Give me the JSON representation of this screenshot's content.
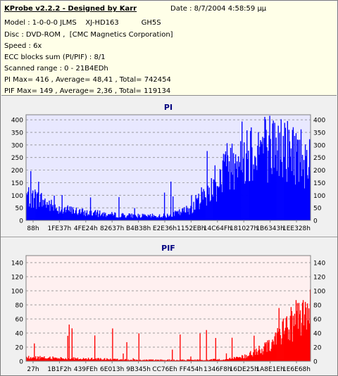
{
  "info": {
    "title": "KProbe v2.2.2 - Designed by Karr",
    "date": "Date : 8/7/2004 4:58:59 μμ",
    "model_label": "Model : 1-0-0-0 JLMS",
    "model_drive": "XJ-HD163",
    "model_fw": "GH5S",
    "disc": "Disc : DVD-ROM ,  [CMC Magnetics Corporation]",
    "speed": "Speed : 6x",
    "ecc": "ECC blocks sum (PI/PIF) : 8/1",
    "range": "Scanned range : 0 - 21B4EDh",
    "pi_stats": "PI Max= 416 , Average= 48,41 , Total= 742454",
    "pif_stats": "PIF Max= 149 , Average= 2,36 , Total= 119134"
  },
  "colors": {
    "pi": "#0000ff",
    "pif": "#ff0000",
    "plot_bg": "#e8e8ff",
    "pif_bg": "#fff0f0",
    "title": "#000080"
  },
  "chart_data": [
    {
      "type": "bar",
      "title": "PI",
      "ylim": [
        0,
        420
      ],
      "yticks": [
        0,
        50,
        100,
        150,
        200,
        250,
        300,
        350,
        400
      ],
      "xtick_labels": [
        "88h",
        "1FE37h",
        "4FE24h",
        "82637h",
        "B4B38h",
        "E2E36h",
        "1152EBh",
        "14C64Fh",
        "181027h",
        "1B6343h",
        "1EE328h"
      ],
      "grid": true,
      "max": 416,
      "average": 48.41,
      "profile": [
        [
          0,
          110
        ],
        [
          0.05,
          90
        ],
        [
          0.1,
          55
        ],
        [
          0.15,
          45
        ],
        [
          0.2,
          35
        ],
        [
          0.25,
          30
        ],
        [
          0.3,
          25
        ],
        [
          0.35,
          22
        ],
        [
          0.4,
          20
        ],
        [
          0.45,
          18
        ],
        [
          0.5,
          22
        ],
        [
          0.52,
          28
        ],
        [
          0.55,
          38
        ],
        [
          0.58,
          55
        ],
        [
          0.6,
          80
        ],
        [
          0.62,
          110
        ],
        [
          0.64,
          125
        ],
        [
          0.66,
          150
        ],
        [
          0.68,
          180
        ],
        [
          0.7,
          230
        ],
        [
          0.72,
          260
        ],
        [
          0.74,
          280
        ],
        [
          0.76,
          300
        ],
        [
          0.8,
          320
        ],
        [
          0.85,
          330
        ],
        [
          0.9,
          320
        ],
        [
          0.95,
          300
        ],
        [
          1.0,
          270
        ]
      ]
    },
    {
      "type": "bar",
      "title": "PIF",
      "ylim": [
        0,
        150
      ],
      "yticks": [
        0,
        20,
        40,
        60,
        80,
        100,
        120,
        140
      ],
      "xtick_labels": [
        "27h",
        "1B1F2h",
        "439FEh",
        "6E013h",
        "9B345h",
        "CC76Eh",
        "FF454h",
        "1346F8h",
        "16DE25h",
        "1A8E1Eh",
        "1E6E68h"
      ],
      "grid": true,
      "max": 149,
      "average": 2.36,
      "profile": [
        [
          0,
          6
        ],
        [
          0.1,
          5
        ],
        [
          0.2,
          4
        ],
        [
          0.3,
          3
        ],
        [
          0.4,
          2
        ],
        [
          0.5,
          2
        ],
        [
          0.6,
          2
        ],
        [
          0.7,
          3
        ],
        [
          0.75,
          6
        ],
        [
          0.8,
          12
        ],
        [
          0.85,
          25
        ],
        [
          0.9,
          45
        ],
        [
          0.95,
          65
        ],
        [
          1.0,
          80
        ]
      ]
    }
  ]
}
